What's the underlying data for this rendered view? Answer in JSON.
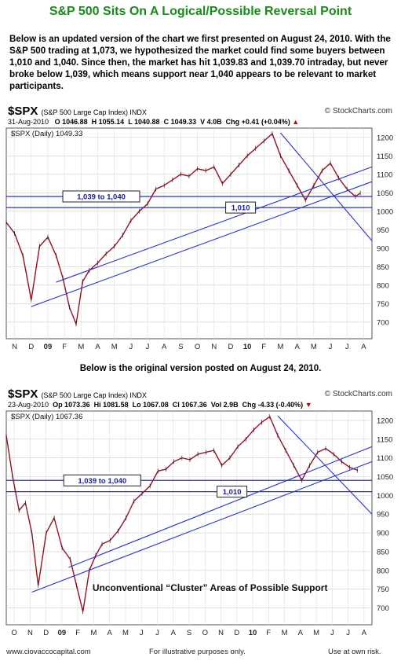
{
  "title": "S&P 500 Sits On A Logical/Possible Reversal Point",
  "intro": "Below is an updated version of the chart we first presented on August 24, 2010. With the S&P 500 trading at 1,073, we hypothesized the market could find some buyers between 1,010 and 1,040.  Since then, the market has hit 1,039.83 and 1,039.70 intraday, but never broke below 1,039, which means support near 1,040 appears to be relevant to market participants.",
  "middle_caption": "Below is the original version posted on August 24, 2010.",
  "footer": {
    "left": "www.ciovaccocapital.com",
    "center": "For illustrative purposes only.",
    "right": "Use at own risk."
  },
  "colors": {
    "title": "#1a8a1a",
    "trendline": "#2233cc",
    "price": "#9a1020",
    "label_text": "#1a1aa0"
  },
  "chart_data": [
    {
      "type": "line",
      "ticker": "$SPX",
      "description": "(S&P 500 Large Cap Index) INDX",
      "source": "© StockCharts.com",
      "header": {
        "date": "31-Aug-2010",
        "o": "O 1046.88",
        "h": "H 1055.14",
        "l": "L 1040.88",
        "c": "C 1049.33",
        "v": "V 4.0B",
        "chg": "Chg +0.41 (+0.04%)",
        "chg_arrow": "▲"
      },
      "series_label": "$SPX (Daily) 1049.33",
      "x_ticks": [
        "N",
        "D",
        "09",
        "F",
        "M",
        "A",
        "M",
        "J",
        "J",
        "A",
        "S",
        "O",
        "N",
        "D",
        "10",
        "F",
        "M",
        "A",
        "M",
        "J",
        "J",
        "A"
      ],
      "y_ticks": [
        700,
        750,
        800,
        850,
        900,
        950,
        1000,
        1050,
        1100,
        1150,
        1200
      ],
      "ylim": [
        655,
        1225
      ],
      "annotations": [
        "1,039 to 1,040",
        "1,010"
      ],
      "x": [
        0,
        0.5,
        1,
        1.5,
        2,
        2.5,
        3,
        3.4,
        3.8,
        4.2,
        4.6,
        5,
        5.5,
        6,
        6.5,
        7,
        7.5,
        8,
        8.5,
        9,
        9.5,
        10,
        10.5,
        11,
        11.5,
        12,
        12.5,
        13,
        13.5,
        14,
        14.5,
        15,
        15.5,
        16,
        16.5,
        17,
        17.5,
        18,
        18.5,
        19,
        19.5,
        20,
        20.5,
        21,
        21.3
      ],
      "values": [
        970,
        940,
        880,
        760,
        905,
        930,
        880,
        820,
        740,
        695,
        810,
        840,
        860,
        885,
        905,
        935,
        975,
        1000,
        1020,
        1060,
        1070,
        1085,
        1100,
        1095,
        1115,
        1110,
        1120,
        1075,
        1100,
        1125,
        1150,
        1170,
        1190,
        1210,
        1150,
        1110,
        1070,
        1030,
        1070,
        1110,
        1130,
        1090,
        1060,
        1040,
        1049
      ]
    },
    {
      "type": "line",
      "ticker": "$SPX",
      "description": "(S&P 500 Large Cap Index) INDX",
      "source": "© StockCharts.com",
      "header": {
        "date": "23-Aug-2010",
        "o": "Op 1073.36",
        "h": "Hi 1081.58",
        "l": "Lo 1067.08",
        "c": "Cl 1067.36",
        "v": "Vol 2.9B",
        "chg": "Chg -4.33 (-0.40%)",
        "chg_arrow": "▼"
      },
      "series_label": "$SPX (Daily) 1067.36",
      "x_ticks": [
        "O",
        "N",
        "D",
        "09",
        "F",
        "M",
        "A",
        "M",
        "J",
        "J",
        "A",
        "S",
        "O",
        "N",
        "D",
        "10",
        "F",
        "M",
        "A",
        "M",
        "J",
        "J",
        "A"
      ],
      "y_ticks": [
        700,
        750,
        800,
        850,
        900,
        950,
        1000,
        1050,
        1100,
        1150,
        1200
      ],
      "ylim": [
        655,
        1225
      ],
      "annotations": [
        "1,039 to 1,040",
        "1,010",
        "Unconventional “Cluster” Areas of Possible Support"
      ],
      "x": [
        0,
        0.4,
        0.8,
        1.2,
        1.6,
        2,
        2.5,
        3,
        3.5,
        4,
        4.4,
        4.8,
        5.2,
        5.6,
        6,
        6.5,
        7,
        7.5,
        8,
        8.5,
        9,
        9.5,
        10,
        10.5,
        11,
        11.5,
        12,
        12.5,
        13,
        13.5,
        14,
        14.5,
        15,
        15.5,
        16,
        16.5,
        17,
        17.5,
        18,
        18.5,
        19,
        19.5,
        20,
        20.5,
        21,
        21.5,
        22
      ],
      "values": [
        1160,
        1050,
        960,
        980,
        900,
        760,
        900,
        940,
        860,
        830,
        760,
        690,
        800,
        840,
        870,
        880,
        905,
        940,
        985,
        1005,
        1025,
        1065,
        1070,
        1090,
        1100,
        1095,
        1110,
        1115,
        1120,
        1080,
        1100,
        1130,
        1150,
        1175,
        1195,
        1210,
        1160,
        1120,
        1080,
        1040,
        1080,
        1115,
        1125,
        1110,
        1090,
        1075,
        1067
      ]
    }
  ]
}
